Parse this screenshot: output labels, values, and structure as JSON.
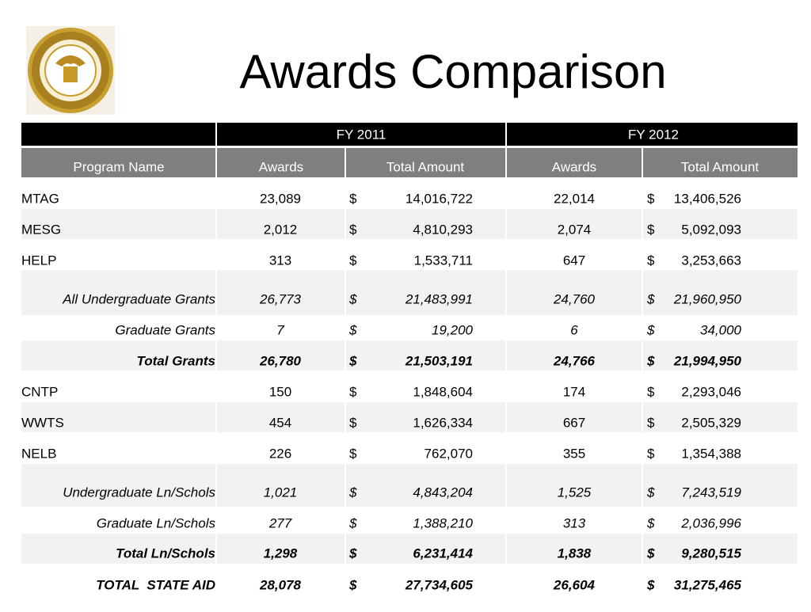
{
  "title": "Awards Comparison",
  "table": {
    "groups": [
      "FY 2011",
      "FY 2012"
    ],
    "columns": [
      "Program Name",
      "Awards",
      "Total Amount",
      "Awards",
      "Total Amount"
    ],
    "rows": [
      {
        "style": "normal",
        "cells": [
          "MTAG",
          "23,089",
          "$",
          "14,016,722",
          "22,014",
          "$",
          "13,406,526"
        ]
      },
      {
        "style": "normal",
        "cells": [
          "MESG",
          "2,012",
          "$",
          "4,810,293",
          "2,074",
          "$",
          "5,092,093"
        ]
      },
      {
        "style": "normal",
        "cells": [
          "HELP",
          "313",
          "$",
          "1,533,711",
          "647",
          "$",
          "3,253,663"
        ]
      },
      {
        "style": "italic",
        "cells": [
          "All Undergraduate Grants",
          "26,773",
          "$",
          "21,483,991",
          "24,760",
          "$",
          "21,960,950"
        ]
      },
      {
        "style": "italic",
        "cells": [
          "Graduate Grants",
          "7",
          "$",
          "19,200",
          "6",
          "$",
          "34,000"
        ]
      },
      {
        "style": "bold-italic",
        "cells": [
          "Total Grants",
          "26,780",
          "$",
          "21,503,191",
          "24,766",
          "$",
          "21,994,950"
        ]
      },
      {
        "style": "normal",
        "cells": [
          "CNTP",
          "150",
          "$",
          "1,848,604",
          "174",
          "$",
          "2,293,046"
        ]
      },
      {
        "style": "normal",
        "cells": [
          "WWTS",
          "454",
          "$",
          "1,626,334",
          "667",
          "$",
          "2,505,329"
        ]
      },
      {
        "style": "normal",
        "cells": [
          "NELB",
          "226",
          "$",
          "762,070",
          "355",
          "$",
          "1,354,388"
        ]
      },
      {
        "style": "italic",
        "cells": [
          "Undergraduate Ln/Schols",
          "1,021",
          "$",
          "4,843,204",
          "1,525",
          "$",
          "7,243,519"
        ]
      },
      {
        "style": "italic",
        "cells": [
          "Graduate Ln/Schols",
          "277",
          "$",
          "1,388,210",
          "313",
          "$",
          "2,036,996"
        ]
      },
      {
        "style": "bold-italic",
        "cells": [
          "Total Ln/Schols",
          "1,298",
          "$",
          "6,231,414",
          "1,838",
          "$",
          "9,280,515"
        ]
      },
      {
        "style": "bold-italic",
        "cells": [
          "TOTAL  STATE AID",
          "28,078",
          "$",
          "27,734,605",
          "26,604",
          "$",
          "31,275,465"
        ]
      }
    ]
  }
}
